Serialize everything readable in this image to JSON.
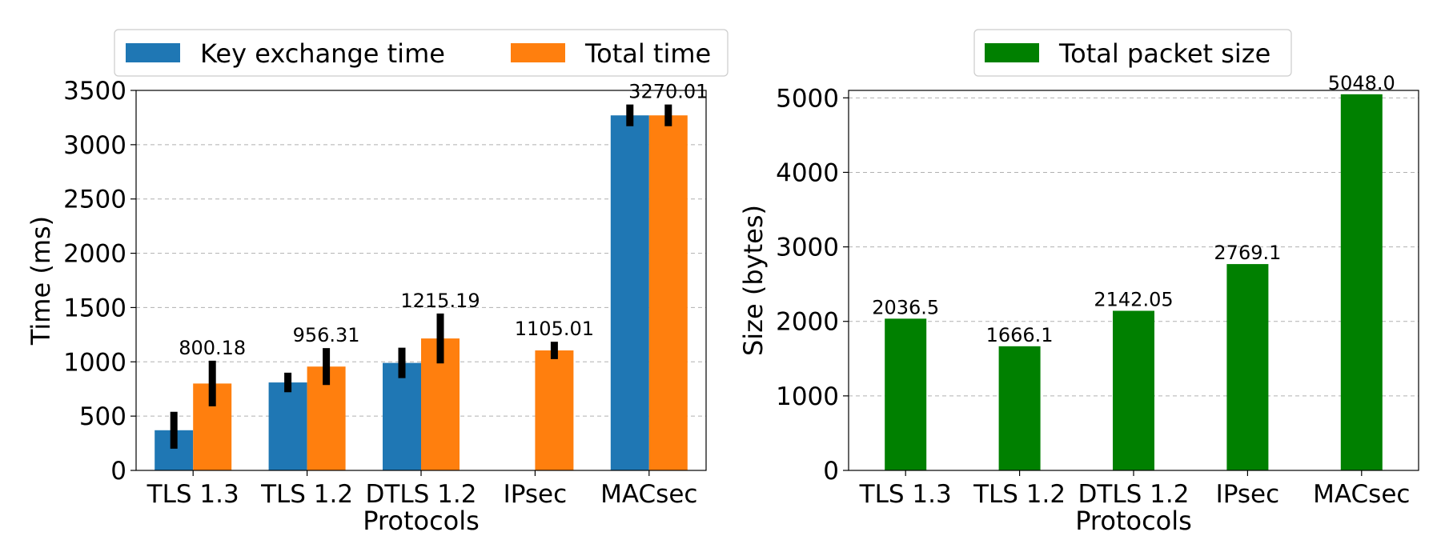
{
  "chart_data": [
    {
      "type": "bar",
      "xlabel": "Protocols",
      "ylabel": "Time (ms)",
      "categories": [
        "TLS 1.3",
        "TLS 1.2",
        "DTLS 1.2",
        "IPsec",
        "MACsec"
      ],
      "ylim": [
        0,
        3500
      ],
      "yticks": [
        0,
        500,
        1000,
        1500,
        2000,
        2500,
        3000,
        3500
      ],
      "grid": true,
      "legend_position": "top",
      "series": [
        {
          "name": "Key exchange time",
          "color": "#1f77b4",
          "values": [
            370,
            810,
            990,
            null,
            3270
          ],
          "errors": [
            170,
            90,
            140,
            null,
            100
          ]
        },
        {
          "name": "Total time",
          "color": "#ff7f0e",
          "values": [
            800.18,
            956.31,
            1215.19,
            1105.01,
            3270.01
          ],
          "errors": [
            210,
            170,
            230,
            80,
            100
          ]
        }
      ],
      "data_labels": [
        "800.18",
        "956.31",
        "1215.19",
        "1105.01",
        "3270.01"
      ]
    },
    {
      "type": "bar",
      "xlabel": "Protocols",
      "ylabel": "Size (bytes)",
      "categories": [
        "TLS 1.3",
        "TLS 1.2",
        "DTLS 1.2",
        "IPsec",
        "MACsec"
      ],
      "ylim": [
        0,
        5100
      ],
      "yticks": [
        0,
        1000,
        2000,
        3000,
        4000,
        5000
      ],
      "grid": true,
      "legend_position": "top",
      "series": [
        {
          "name": "Total packet size",
          "color": "#008000",
          "values": [
            2036.5,
            1666.1,
            2142.05,
            2769.1,
            5048.0
          ]
        }
      ],
      "data_labels": [
        "2036.5",
        "1666.1",
        "2142.05",
        "2769.1",
        "5048.0"
      ]
    }
  ]
}
